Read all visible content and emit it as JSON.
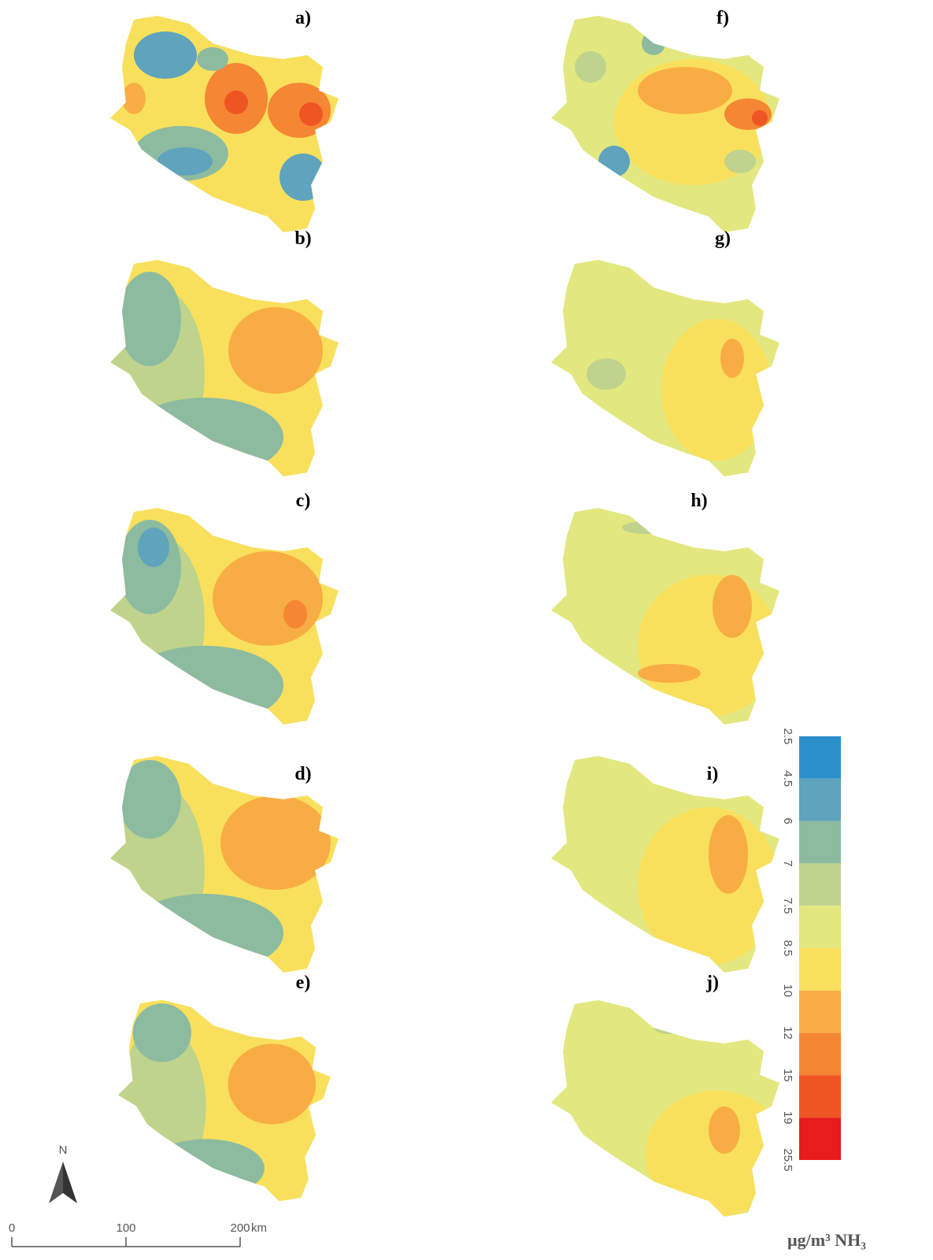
{
  "panels": [
    {
      "label": "a)"
    },
    {
      "label": "b)"
    },
    {
      "label": "c)"
    },
    {
      "label": "d)"
    },
    {
      "label": "e)"
    },
    {
      "label": "f)"
    },
    {
      "label": "g)"
    },
    {
      "label": "h)"
    },
    {
      "label": "i)"
    },
    {
      "label": "j)"
    }
  ],
  "legend": {
    "ticks": [
      2.5,
      4.5,
      6,
      7,
      7.5,
      8.5,
      10,
      12,
      15,
      19,
      25.5
    ],
    "colors": [
      "#2b8fcc",
      "#5fa3bd",
      "#8dbba0",
      "#bfd38c",
      "#e3e77f",
      "#f9e05c",
      "#f8ad44",
      "#f58634",
      "#ef5523",
      "#e81c1c"
    ],
    "unit": "µg/m³ NH₃"
  },
  "scale_bar": {
    "ticks": [
      0,
      100,
      200
    ],
    "unit": "km"
  },
  "north": "N"
}
